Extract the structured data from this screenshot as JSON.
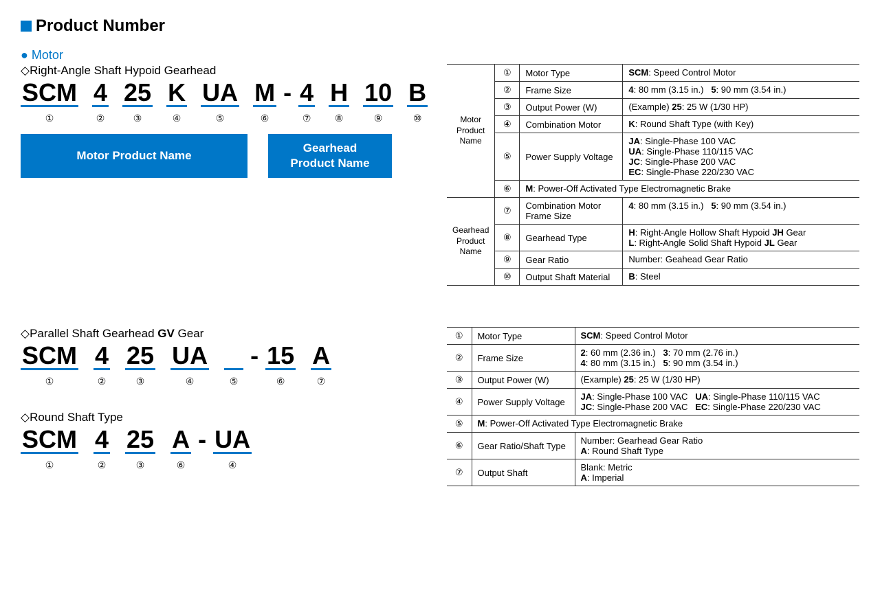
{
  "title": "Product Number",
  "colors": {
    "accent": "#0077c8",
    "text": "#000000",
    "border": "#333333"
  },
  "motor_label": "Motor",
  "type1": {
    "heading": "Right-Angle Shaft Hypoid Gearhead",
    "segs": [
      "SCM",
      "4",
      "25",
      "K",
      "UA",
      "M",
      "4",
      "H",
      "10",
      "B"
    ],
    "nums": [
      "①",
      "②",
      "③",
      "④",
      "⑤",
      "⑥",
      "⑦",
      "⑧",
      "⑨",
      "⑩"
    ],
    "box1": "Motor Product Name",
    "box2a": "Gearhead",
    "box2b": "Product Name"
  },
  "type2": {
    "heading": "Parallel Shaft Gearhead GV Gear",
    "segs": [
      "SCM",
      "4",
      "25",
      "UA",
      "",
      "15",
      "A"
    ],
    "nums": [
      "①",
      "②",
      "③",
      "④",
      "⑤",
      "⑥",
      "⑦"
    ]
  },
  "type3": {
    "heading": "Round Shaft Type",
    "segs": [
      "SCM",
      "4",
      "25",
      "A",
      "UA"
    ],
    "nums": [
      "①",
      "②",
      "③",
      "⑥",
      "④"
    ]
  },
  "table1": {
    "grp1": "Motor\nProduct\nName",
    "grp2": "Gearhead\nProduct\nName",
    "rows": [
      {
        "n": "①",
        "l": "Motor Type",
        "v": "<b>SCM</b>: Speed Control Motor"
      },
      {
        "n": "②",
        "l": "Frame Size",
        "v": "<b>4</b>: 80 mm (3.15 in.)&nbsp;&nbsp;&nbsp;<b>5</b>: 90 mm (3.54 in.)"
      },
      {
        "n": "③",
        "l": "Output Power (W)",
        "v": "(Example) <b>25</b>: 25 W (1/30 HP)"
      },
      {
        "n": "④",
        "l": "Combination Motor",
        "v": "<b>K</b>: Round Shaft Type (with Key)"
      },
      {
        "n": "⑤",
        "l": "Power Supply Voltage",
        "v": "<b>JA</b>: Single-Phase 100 VAC<br><b>UA</b>: Single-Phase 110/115 VAC<br><b>JC</b>: Single-Phase 200 VAC<br><b>EC</b>: Single-Phase 220/230 VAC"
      },
      {
        "n": "⑥",
        "l": "",
        "v": "<b>M</b>: Power-Off Activated Type Electromagnetic Brake",
        "span": true
      },
      {
        "n": "⑦",
        "l": "Combination Motor Frame Size",
        "v": "<b>4</b>: 80 mm (3.15 in.)&nbsp;&nbsp;&nbsp;<b>5</b>: 90 mm (3.54 in.)"
      },
      {
        "n": "⑧",
        "l": "Gearhead Type",
        "v": "<b>H</b>: Right-Angle Hollow Shaft Hypoid <b>JH</b> Gear<br><b>L</b>: Right-Angle Solid Shaft Hypoid <b>JL</b> Gear"
      },
      {
        "n": "⑨",
        "l": "Gear Ratio",
        "v": "Number: Geahead Gear Ratio"
      },
      {
        "n": "⑩",
        "l": "Output Shaft Material",
        "v": "<b>B</b>: Steel"
      }
    ]
  },
  "table2": {
    "rows": [
      {
        "n": "①",
        "l": "Motor Type",
        "v": "<b>SCM</b>: Speed Control Motor"
      },
      {
        "n": "②",
        "l": "Frame Size",
        "v": "<b>2</b>: 60 mm (2.36 in.)&nbsp;&nbsp;&nbsp;<b>3</b>: 70 mm (2.76 in.)<br><b>4</b>: 80 mm (3.15 in.)&nbsp;&nbsp;&nbsp;<b>5</b>: 90 mm (3.54 in.)"
      },
      {
        "n": "③",
        "l": "Output Power (W)",
        "v": "(Example) <b>25</b>: 25 W (1/30 HP)"
      },
      {
        "n": "④",
        "l": "Power Supply Voltage",
        "v": "<b>JA</b>: Single-Phase 100 VAC&nbsp;&nbsp;&nbsp;<b>UA</b>: Single-Phase 110/115 VAC<br><b>JC</b>: Single-Phase 200 VAC&nbsp;&nbsp;&nbsp;<b>EC</b>: Single-Phase 220/230 VAC"
      },
      {
        "n": "⑤",
        "l": "",
        "v": "<b>M</b>: Power-Off Activated Type Electromagnetic Brake",
        "span": true
      },
      {
        "n": "⑥",
        "l": "Gear Ratio/Shaft Type",
        "v": "Number: Gearhead Gear Ratio<br><b>A</b>: Round Shaft Type"
      },
      {
        "n": "⑦",
        "l": "Output Shaft",
        "v": "Blank: Metric<br><b>A</b>: Imperial"
      }
    ]
  }
}
